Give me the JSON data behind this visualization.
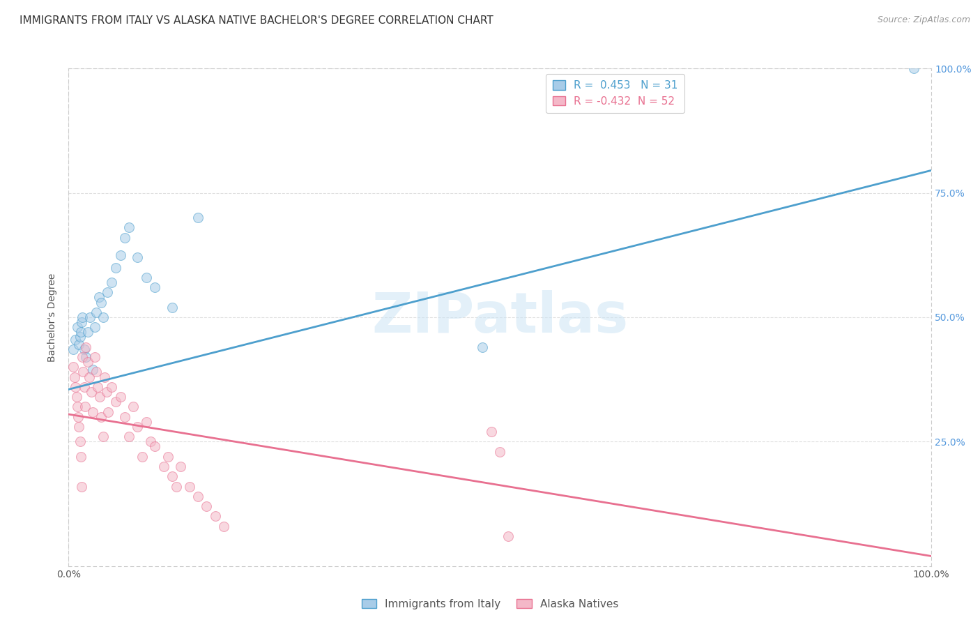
{
  "title": "IMMIGRANTS FROM ITALY VS ALASKA NATIVE BACHELOR'S DEGREE CORRELATION CHART",
  "source": "Source: ZipAtlas.com",
  "ylabel": "Bachelor's Degree",
  "watermark": "ZIPatlas",
  "blue_r": 0.453,
  "blue_n": 31,
  "pink_r": -0.432,
  "pink_n": 52,
  "blue_color": "#a8cce8",
  "pink_color": "#f4b8c8",
  "blue_line_color": "#4d9fcd",
  "pink_line_color": "#e87090",
  "xlim": [
    0,
    1.0
  ],
  "ylim": [
    0,
    1.0
  ],
  "xtick_labels": [
    "0.0%",
    "100.0%"
  ],
  "ytick_labels": [
    "25.0%",
    "50.0%",
    "75.0%",
    "100.0%"
  ],
  "ytick_positions": [
    0.25,
    0.5,
    0.75,
    1.0
  ],
  "blue_scatter_x": [
    0.005,
    0.008,
    0.01,
    0.012,
    0.013,
    0.014,
    0.015,
    0.016,
    0.018,
    0.02,
    0.022,
    0.025,
    0.028,
    0.03,
    0.032,
    0.035,
    0.038,
    0.04,
    0.045,
    0.05,
    0.055,
    0.06,
    0.065,
    0.07,
    0.08,
    0.09,
    0.1,
    0.12,
    0.15,
    0.48,
    0.98
  ],
  "blue_scatter_y": [
    0.435,
    0.455,
    0.48,
    0.445,
    0.46,
    0.47,
    0.49,
    0.5,
    0.435,
    0.42,
    0.47,
    0.5,
    0.395,
    0.48,
    0.51,
    0.54,
    0.53,
    0.5,
    0.55,
    0.57,
    0.6,
    0.625,
    0.66,
    0.68,
    0.62,
    0.58,
    0.56,
    0.52,
    0.7,
    0.44,
    1.0
  ],
  "pink_scatter_x": [
    0.005,
    0.007,
    0.008,
    0.009,
    0.01,
    0.011,
    0.012,
    0.013,
    0.014,
    0.015,
    0.016,
    0.017,
    0.018,
    0.019,
    0.02,
    0.022,
    0.024,
    0.026,
    0.028,
    0.03,
    0.032,
    0.034,
    0.036,
    0.038,
    0.04,
    0.042,
    0.044,
    0.046,
    0.05,
    0.055,
    0.06,
    0.065,
    0.07,
    0.075,
    0.08,
    0.085,
    0.09,
    0.095,
    0.1,
    0.11,
    0.115,
    0.12,
    0.125,
    0.13,
    0.14,
    0.15,
    0.16,
    0.17,
    0.18,
    0.49,
    0.5,
    0.51
  ],
  "pink_scatter_y": [
    0.4,
    0.38,
    0.36,
    0.34,
    0.32,
    0.3,
    0.28,
    0.25,
    0.22,
    0.16,
    0.42,
    0.39,
    0.36,
    0.32,
    0.44,
    0.41,
    0.38,
    0.35,
    0.31,
    0.42,
    0.39,
    0.36,
    0.34,
    0.3,
    0.26,
    0.38,
    0.35,
    0.31,
    0.36,
    0.33,
    0.34,
    0.3,
    0.26,
    0.32,
    0.28,
    0.22,
    0.29,
    0.25,
    0.24,
    0.2,
    0.22,
    0.18,
    0.16,
    0.2,
    0.16,
    0.14,
    0.12,
    0.1,
    0.08,
    0.27,
    0.23,
    0.06
  ],
  "blue_line_x": [
    0.0,
    1.0
  ],
  "blue_line_y_start": 0.355,
  "blue_line_y_end": 0.795,
  "pink_line_x": [
    0.0,
    1.0
  ],
  "pink_line_y_start": 0.305,
  "pink_line_y_end": 0.02,
  "title_fontsize": 11,
  "label_fontsize": 10,
  "tick_fontsize": 10,
  "source_fontsize": 9,
  "marker_size": 100,
  "marker_alpha": 0.55
}
